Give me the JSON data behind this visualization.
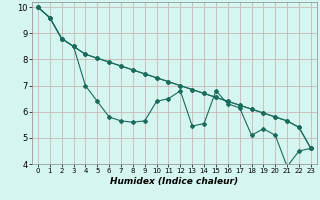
{
  "xlabel": "Humidex (Indice chaleur)",
  "xlim": [
    -0.5,
    23.5
  ],
  "ylim": [
    4,
    10.2
  ],
  "xticks": [
    0,
    1,
    2,
    3,
    4,
    5,
    6,
    7,
    8,
    9,
    10,
    11,
    12,
    13,
    14,
    15,
    16,
    17,
    18,
    19,
    20,
    21,
    22,
    23
  ],
  "yticks": [
    4,
    5,
    6,
    7,
    8,
    9,
    10
  ],
  "bg_color": "#d4f5f0",
  "grid_color": "#c9b8b8",
  "line_color": "#1a6b5a",
  "line1_x": [
    0,
    1,
    2,
    3,
    4,
    5,
    6,
    7,
    8,
    9,
    10,
    11,
    12,
    13,
    14,
    15,
    16,
    17,
    18,
    19,
    20,
    21,
    22,
    23
  ],
  "line1_y": [
    10.0,
    9.6,
    8.8,
    8.5,
    8.2,
    8.05,
    7.9,
    7.75,
    7.6,
    7.45,
    7.3,
    7.15,
    7.0,
    6.85,
    6.7,
    6.55,
    6.4,
    6.25,
    6.1,
    5.95,
    5.8,
    5.65,
    5.4,
    4.6
  ],
  "line2_x": [
    0,
    1,
    2,
    3,
    4,
    5,
    6,
    7,
    8,
    9,
    10,
    11,
    12,
    13,
    14,
    15,
    16,
    17,
    18,
    19,
    20,
    21,
    22,
    23
  ],
  "line2_y": [
    10.0,
    9.6,
    8.8,
    8.5,
    7.0,
    6.4,
    5.8,
    5.65,
    5.6,
    5.65,
    6.4,
    6.5,
    6.8,
    5.45,
    5.55,
    6.8,
    6.3,
    6.15,
    5.1,
    5.35,
    5.1,
    3.9,
    4.5,
    4.6
  ],
  "line3_x": [
    0,
    1,
    2,
    3,
    4,
    5,
    6,
    7,
    8,
    9,
    10,
    11,
    12,
    13,
    14,
    15,
    16,
    17,
    18,
    19,
    20,
    21,
    22,
    23
  ],
  "line3_y": [
    10.0,
    9.6,
    8.8,
    8.5,
    8.2,
    8.05,
    7.9,
    7.75,
    7.6,
    7.45,
    7.3,
    7.15,
    7.0,
    6.85,
    6.7,
    6.55,
    6.4,
    6.25,
    6.1,
    5.95,
    5.8,
    5.65,
    5.4,
    4.6
  ]
}
